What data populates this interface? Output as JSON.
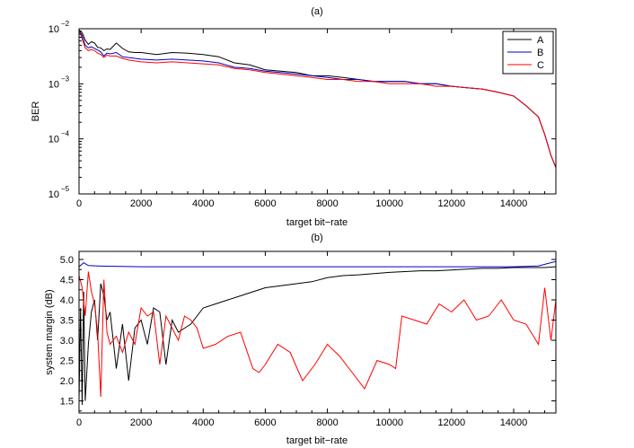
{
  "chart_data": [
    {
      "type": "line",
      "title": "(a)",
      "xlabel": "target bit−rate",
      "ylabel": "BER",
      "xlim": [
        0,
        15360
      ],
      "ylim": [
        1e-05,
        0.01
      ],
      "yscale": "log",
      "x_ticks": [
        0,
        2000,
        4000,
        6000,
        8000,
        10000,
        12000,
        14000
      ],
      "x_tick_labels": [
        "0",
        "2000",
        "4000",
        "6000",
        "8000",
        "10000",
        "12000",
        "14000"
      ],
      "y_ticks": [
        1e-05,
        0.0001,
        0.001,
        0.01
      ],
      "y_tick_labels": [
        {
          "base": "10",
          "exp": "−5"
        },
        {
          "base": "10",
          "exp": "−4"
        },
        {
          "base": "10",
          "exp": "−3"
        },
        {
          "base": "10",
          "exp": "−2"
        }
      ],
      "legend_position": "top-right",
      "grid": false,
      "series": [
        {
          "name": "A",
          "color": "#000000",
          "x": [
            0,
            100,
            200,
            300,
            400,
            500,
            600,
            700,
            800,
            900,
            1000,
            1200,
            1400,
            1600,
            1800,
            2000,
            2500,
            3000,
            3500,
            4000,
            4500,
            5000,
            5500,
            6000,
            6500,
            7000,
            7500,
            8000,
            8500,
            9000,
            9500,
            10000,
            10500,
            11000,
            11500,
            12000,
            12500,
            13000,
            13500,
            14000,
            14400,
            14800,
            15000,
            15200,
            15360
          ],
          "y": [
            0.0095,
            0.0085,
            0.0062,
            0.0052,
            0.0058,
            0.0055,
            0.0046,
            0.0045,
            0.004,
            0.0043,
            0.0042,
            0.0055,
            0.0044,
            0.0038,
            0.0037,
            0.0037,
            0.0034,
            0.0037,
            0.0036,
            0.0034,
            0.0031,
            0.0024,
            0.0022,
            0.0018,
            0.0017,
            0.0016,
            0.0014,
            0.0014,
            0.0013,
            0.0012,
            0.0011,
            0.0011,
            0.0011,
            0.001,
            0.001,
            0.0009,
            0.00085,
            0.0008,
            0.0007,
            0.0006,
            0.0004,
            0.00025,
            0.00012,
            5e-05,
            3e-05
          ]
        },
        {
          "name": "B",
          "color": "#0000cc",
          "x": [
            0,
            100,
            200,
            300,
            400,
            500,
            600,
            700,
            800,
            900,
            1000,
            1200,
            1400,
            1600,
            1800,
            2000,
            2500,
            3000,
            3500,
            4000,
            4500,
            5000,
            5500,
            6000,
            6500,
            7000,
            7500,
            8000,
            8500,
            9000,
            9500,
            10000,
            10500,
            11000,
            11500,
            12000,
            12500,
            13000,
            13500,
            14000,
            14400,
            14800,
            15000,
            15200,
            15360
          ],
          "y": [
            0.0095,
            0.0075,
            0.005,
            0.0045,
            0.0047,
            0.0044,
            0.0041,
            0.0038,
            0.0032,
            0.0036,
            0.0035,
            0.0037,
            0.0031,
            0.003,
            0.0029,
            0.0028,
            0.0027,
            0.0028,
            0.0027,
            0.0026,
            0.0024,
            0.002,
            0.0019,
            0.0017,
            0.0016,
            0.0015,
            0.0014,
            0.0013,
            0.0012,
            0.0012,
            0.0011,
            0.0011,
            0.0011,
            0.001,
            0.001,
            0.0009,
            0.00085,
            0.0008,
            0.0007,
            0.0006,
            0.0004,
            0.00025,
            0.00012,
            5e-05,
            3e-05
          ]
        },
        {
          "name": "C",
          "color": "#ff0000",
          "x": [
            0,
            100,
            200,
            300,
            400,
            500,
            600,
            700,
            800,
            900,
            1000,
            1200,
            1400,
            1600,
            1800,
            2000,
            2500,
            3000,
            3500,
            4000,
            4500,
            5000,
            5500,
            6000,
            6500,
            7000,
            7500,
            8000,
            8500,
            9000,
            9500,
            10000,
            10500,
            11000,
            11500,
            12000,
            12500,
            13000,
            13500,
            14000,
            14400,
            14800,
            15000,
            15200,
            15360
          ],
          "y": [
            0.0095,
            0.0065,
            0.0045,
            0.004,
            0.0042,
            0.004,
            0.0036,
            0.0034,
            0.003,
            0.0033,
            0.0032,
            0.0032,
            0.0029,
            0.0027,
            0.0026,
            0.0025,
            0.0024,
            0.0025,
            0.0024,
            0.0023,
            0.0022,
            0.0019,
            0.0018,
            0.0016,
            0.0015,
            0.0014,
            0.0013,
            0.0012,
            0.0012,
            0.0011,
            0.0011,
            0.001,
            0.001,
            0.001,
            0.0009,
            0.0009,
            0.00085,
            0.0008,
            0.0007,
            0.0006,
            0.0004,
            0.00025,
            0.00012,
            5e-05,
            3e-05
          ]
        }
      ]
    },
    {
      "type": "line",
      "title": "(b)",
      "xlabel": "target bit−rate",
      "ylabel": "system margin (dB)",
      "xlim": [
        0,
        15360
      ],
      "ylim": [
        1.2,
        5.2
      ],
      "x_ticks": [
        0,
        2000,
        4000,
        6000,
        8000,
        10000,
        12000,
        14000
      ],
      "x_tick_labels": [
        "0",
        "2000",
        "4000",
        "6000",
        "8000",
        "10000",
        "12000",
        "14000"
      ],
      "y_ticks": [
        1.5,
        2.0,
        2.5,
        3.0,
        3.5,
        4.0,
        4.5,
        5.0
      ],
      "y_tick_labels": [
        "1.5",
        "2.0",
        "2.5",
        "3.0",
        "3.5",
        "4.0",
        "4.5",
        "5.0"
      ],
      "grid": false,
      "series": [
        {
          "name": "",
          "color": "#0000cc",
          "x": [
            0,
            150,
            300,
            600,
            1000,
            2000,
            4000,
            6000,
            8000,
            10000,
            12000,
            14000,
            14800,
            15100,
            15360
          ],
          "y": [
            4.82,
            4.92,
            4.85,
            4.84,
            4.83,
            4.82,
            4.82,
            4.82,
            4.82,
            4.82,
            4.82,
            4.82,
            4.84,
            4.9,
            4.95
          ]
        },
        {
          "name": "",
          "color": "#000000",
          "x": [
            0,
            50,
            100,
            150,
            200,
            300,
            400,
            500,
            600,
            700,
            800,
            900,
            1000,
            1200,
            1400,
            1600,
            1800,
            2000,
            2200,
            2400,
            2600,
            2800,
            3000,
            3200,
            3400,
            3600,
            3800,
            4000,
            4400,
            4800,
            5200,
            5600,
            6000,
            6500,
            7000,
            7500,
            8000,
            8500,
            9000,
            9500,
            10000,
            10500,
            11000,
            11500,
            12000,
            12500,
            13000,
            13500,
            14000,
            14500,
            15000,
            15360
          ],
          "y": [
            1.5,
            3.8,
            1.4,
            4.2,
            1.5,
            2.9,
            3.7,
            4.0,
            3.0,
            4.4,
            4.1,
            3.5,
            3.7,
            2.3,
            3.4,
            2.0,
            3.3,
            3.5,
            2.9,
            3.8,
            3.7,
            2.4,
            3.5,
            3.2,
            3.3,
            3.4,
            3.6,
            3.8,
            3.9,
            4.0,
            4.1,
            4.2,
            4.3,
            4.35,
            4.4,
            4.45,
            4.55,
            4.6,
            4.62,
            4.65,
            4.68,
            4.7,
            4.72,
            4.72,
            4.74,
            4.76,
            4.78,
            4.78,
            4.8,
            4.8,
            4.8,
            4.82
          ]
        },
        {
          "name": "",
          "color": "#ff0000",
          "x": [
            0,
            100,
            200,
            300,
            400,
            500,
            600,
            700,
            800,
            900,
            1000,
            1200,
            1400,
            1600,
            1800,
            2000,
            2200,
            2400,
            2600,
            2800,
            3000,
            3200,
            3400,
            3600,
            3800,
            4000,
            4400,
            4800,
            5200,
            5600,
            5800,
            6000,
            6400,
            6800,
            7200,
            7600,
            8000,
            8400,
            8800,
            9200,
            9600,
            10000,
            10200,
            10400,
            10800,
            11200,
            11600,
            12000,
            12400,
            12800,
            13200,
            13600,
            14000,
            14400,
            14800,
            15000,
            15200,
            15360
          ],
          "y": [
            4.6,
            4.3,
            3.6,
            4.7,
            4.2,
            3.9,
            3.2,
            1.6,
            4.5,
            3.2,
            2.9,
            3.1,
            2.7,
            3.2,
            2.9,
            3.8,
            3.6,
            3.7,
            2.4,
            3.6,
            3.3,
            3.0,
            3.6,
            3.5,
            3.3,
            2.8,
            2.9,
            3.1,
            3.2,
            2.3,
            2.2,
            2.4,
            2.9,
            2.7,
            2.0,
            2.4,
            2.9,
            2.6,
            2.2,
            1.8,
            2.5,
            2.4,
            2.3,
            3.6,
            3.5,
            3.4,
            3.9,
            3.7,
            4.0,
            3.5,
            3.6,
            4.0,
            3.5,
            3.4,
            2.9,
            4.3,
            3.0,
            4.0
          ]
        }
      ]
    }
  ]
}
